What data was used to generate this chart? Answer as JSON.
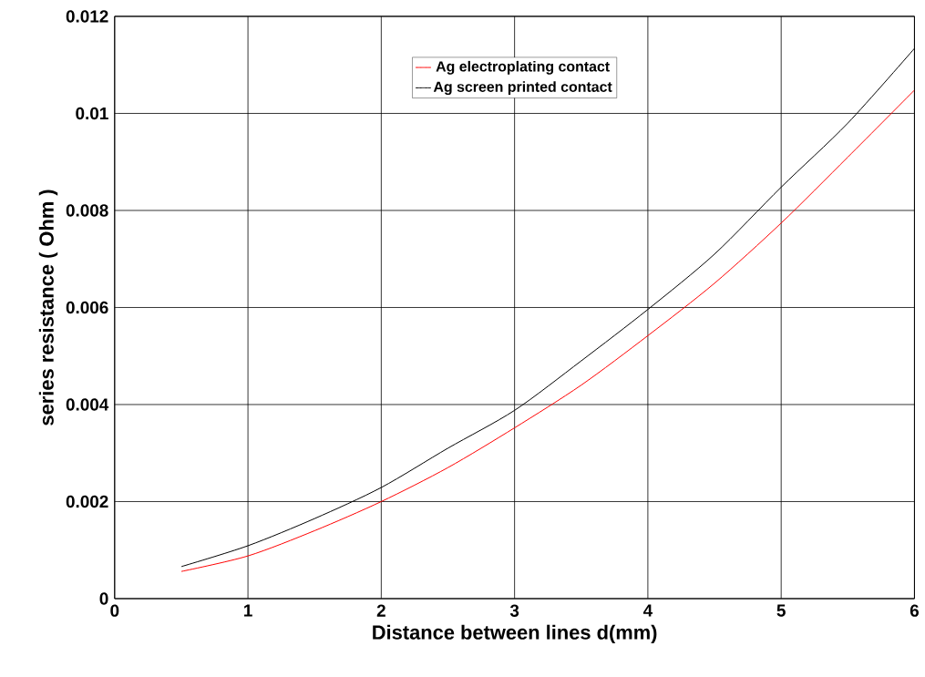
{
  "chart_data": {
    "type": "line",
    "xlabel": "Distance between lines   d(mm)",
    "ylabel": "series resistance  ( Ohm )",
    "xlim": [
      0,
      6
    ],
    "ylim": [
      0,
      0.012
    ],
    "xticks": [
      0,
      1,
      2,
      3,
      4,
      5,
      6
    ],
    "yticks": [
      0,
      0.002,
      0.004,
      0.006,
      0.008,
      0.01,
      0.012
    ],
    "grid": true,
    "legend": "top",
    "marker": "none",
    "line_style": "solid",
    "series": [
      {
        "name": "Ag electroplating contact",
        "color": "#ff0000",
        "x": [
          0.5,
          1,
          1.5,
          2,
          2.5,
          3,
          3.5,
          4,
          4.5,
          5,
          5.5,
          6
        ],
        "values": [
          0.00056,
          0.00088,
          0.0014,
          0.002,
          0.0027,
          0.00352,
          0.0044,
          0.00542,
          0.0065,
          0.00774,
          0.0091,
          0.01048
        ]
      },
      {
        "name": "Ag screen printed contact",
        "color": "#000000",
        "x": [
          0.5,
          1,
          1.5,
          2,
          2.5,
          3,
          3.5,
          4,
          4.5,
          5,
          5.5,
          6
        ],
        "values": [
          0.00066,
          0.00109,
          0.00165,
          0.00229,
          0.0031,
          0.00388,
          0.0049,
          0.00596,
          0.0071,
          0.00848,
          0.0098,
          0.01134
        ]
      }
    ]
  }
}
